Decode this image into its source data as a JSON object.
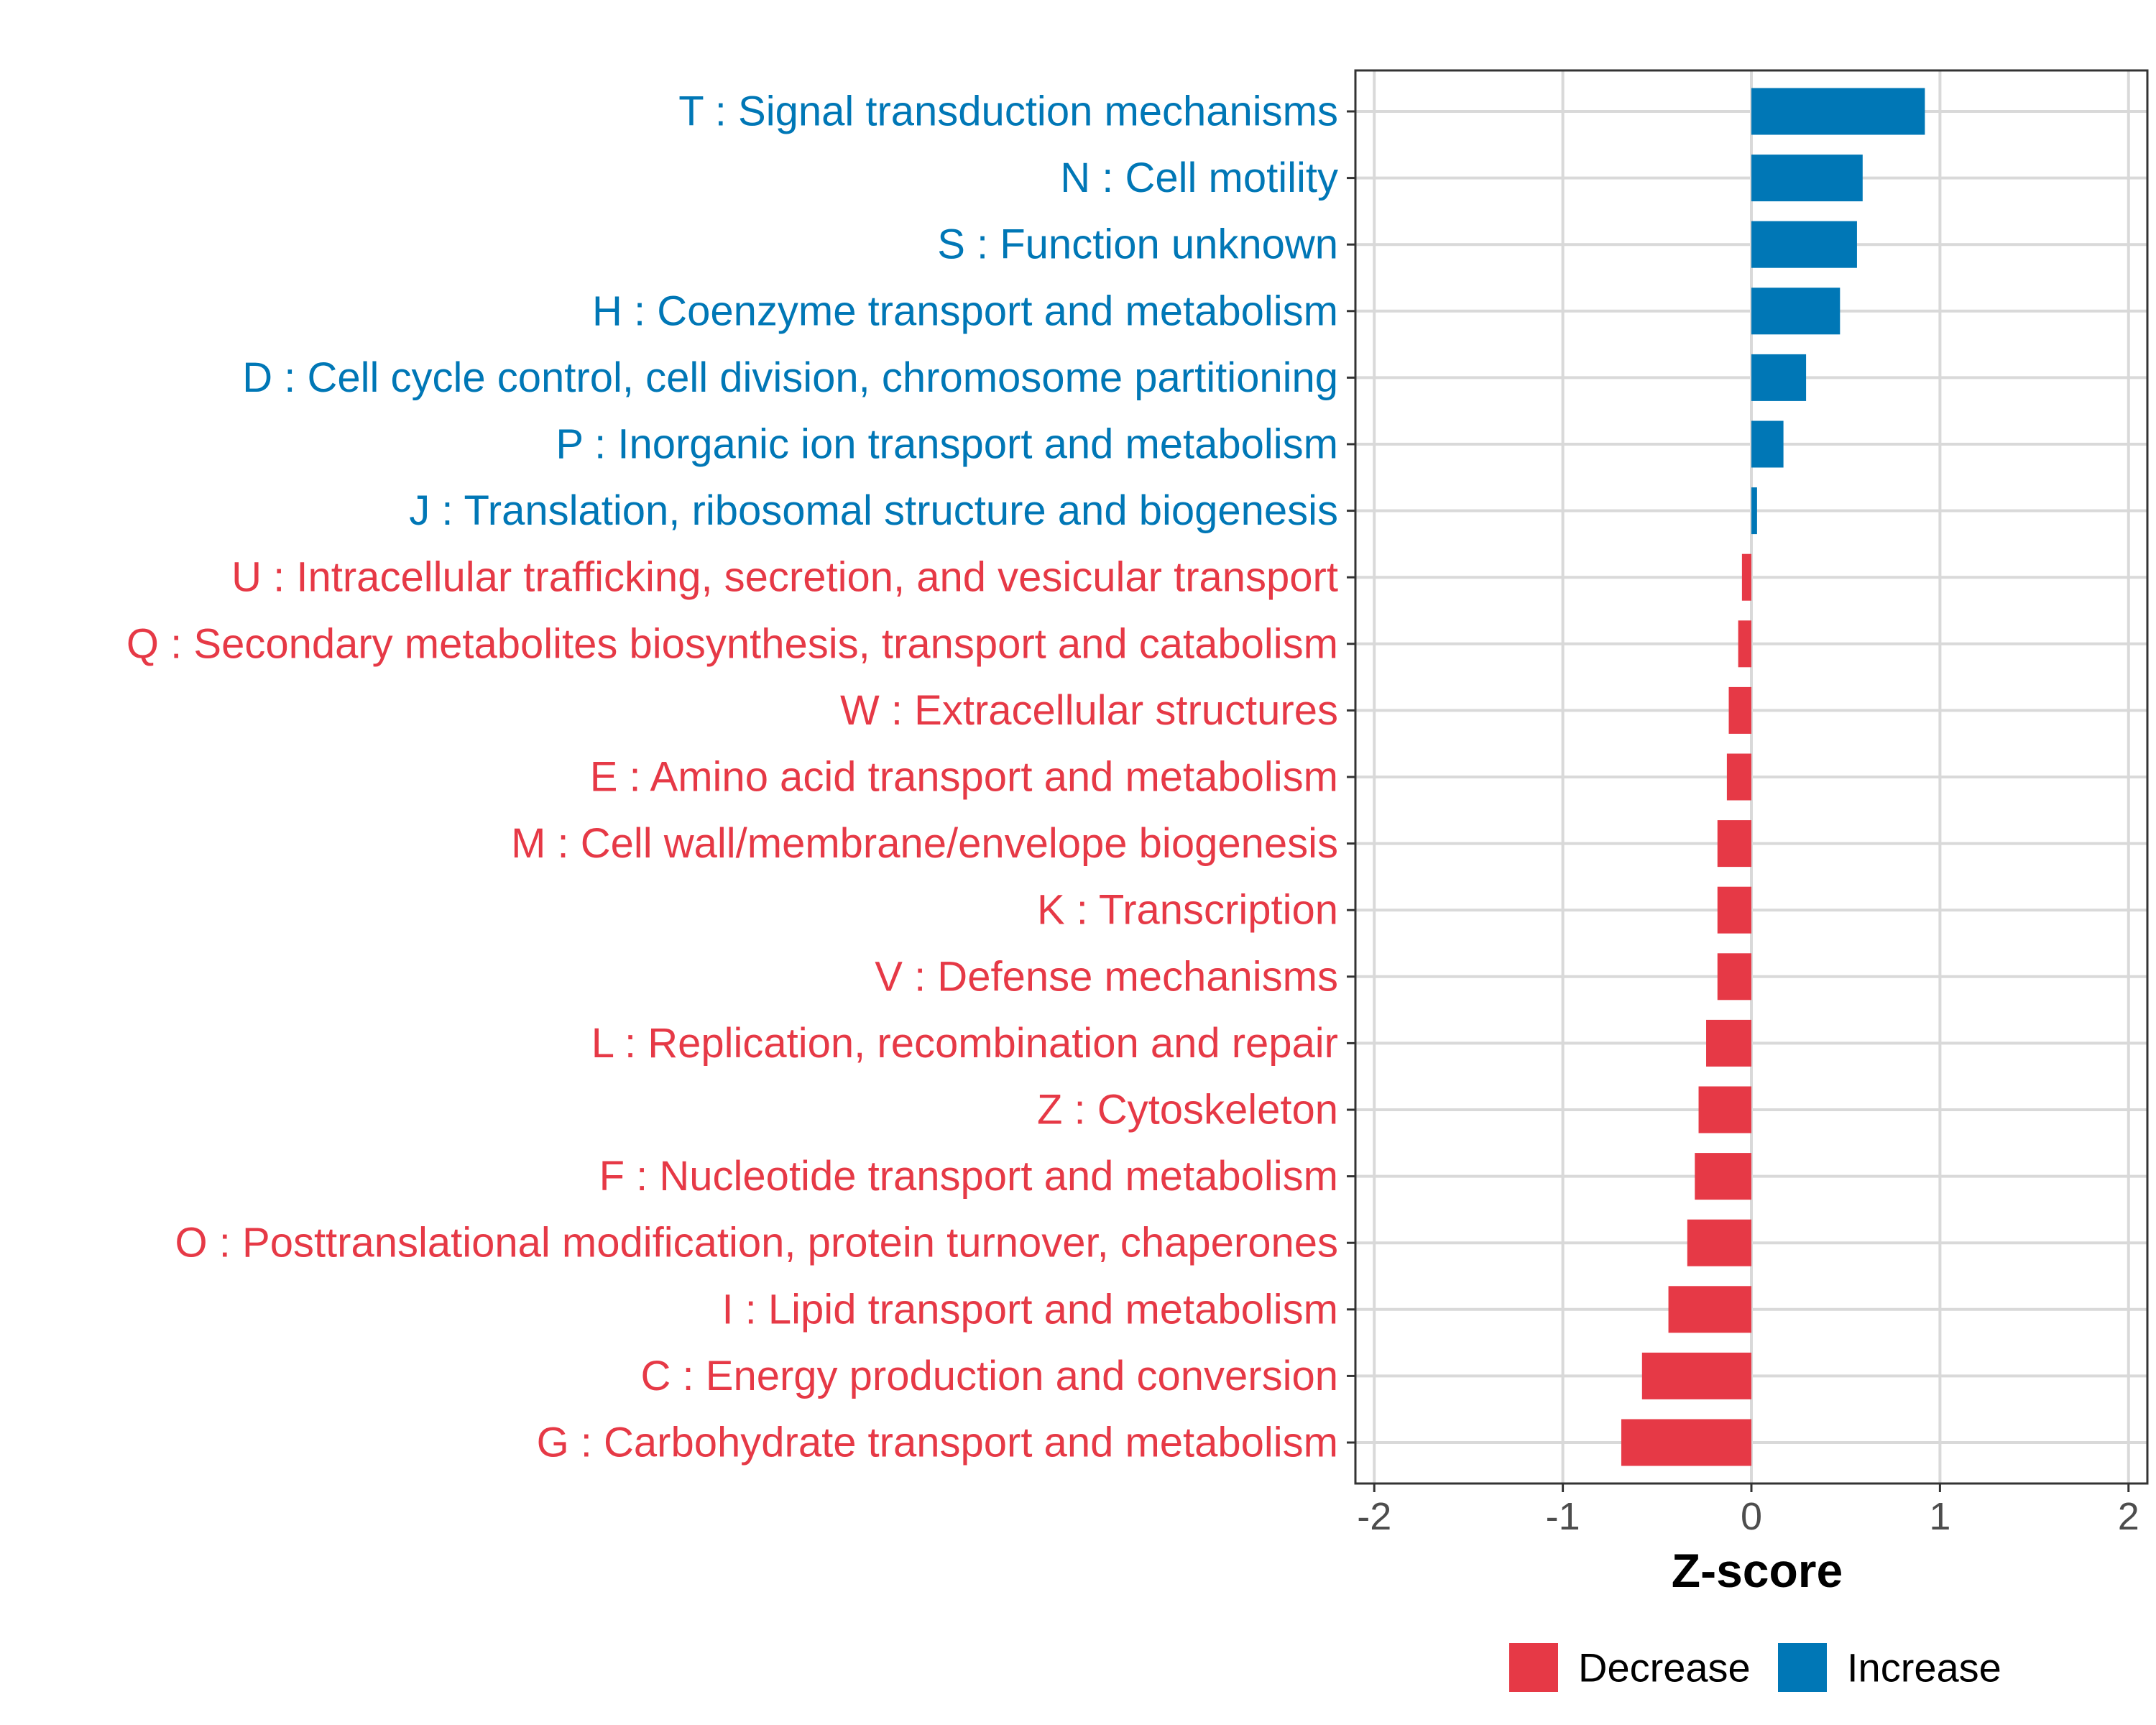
{
  "chart_data": {
    "type": "bar",
    "orientation": "horizontal",
    "title": "",
    "xlabel": "Z-score",
    "ylabel": "",
    "xlim": [
      -2.1,
      2.1
    ],
    "xticks": [
      -2,
      -1,
      0,
      1,
      2
    ],
    "xtick_labels": [
      "-2",
      "-1",
      "0",
      "1",
      "2"
    ],
    "grid": true,
    "legend": {
      "position": "bottom",
      "entries": [
        {
          "label": "Decrease",
          "color": "#E63946"
        },
        {
          "label": "Increase",
          "color": "#0077B6"
        }
      ]
    },
    "categories": [
      "T : Signal transduction mechanisms",
      "N : Cell motility",
      "S : Function unknown",
      "H : Coenzyme transport and metabolism",
      "D : Cell cycle control, cell division, chromosome partitioning",
      "P : Inorganic ion transport and metabolism",
      "J : Translation, ribosomal structure and biogenesis",
      "U : Intracellular trafficking, secretion, and vesicular transport",
      "Q : Secondary metabolites biosynthesis, transport and catabolism",
      "W : Extracellular structures",
      "E : Amino acid transport and metabolism",
      "M : Cell wall/membrane/envelope biogenesis",
      "K : Transcription",
      "V : Defense mechanisms",
      "L : Replication, recombination and repair",
      "Z : Cytoskeleton",
      "F : Nucleotide transport and metabolism",
      "O : Posttranslational modification, protein turnover, chaperones",
      "I : Lipid transport and metabolism",
      "C : Energy production and conversion",
      "G : Carbohydrate transport and metabolism"
    ],
    "values": [
      0.92,
      0.59,
      0.56,
      0.47,
      0.29,
      0.17,
      0.03,
      -0.05,
      -0.07,
      -0.12,
      -0.13,
      -0.18,
      -0.18,
      -0.18,
      -0.24,
      -0.28,
      -0.3,
      -0.34,
      -0.44,
      -0.58,
      -0.69
    ]
  }
}
